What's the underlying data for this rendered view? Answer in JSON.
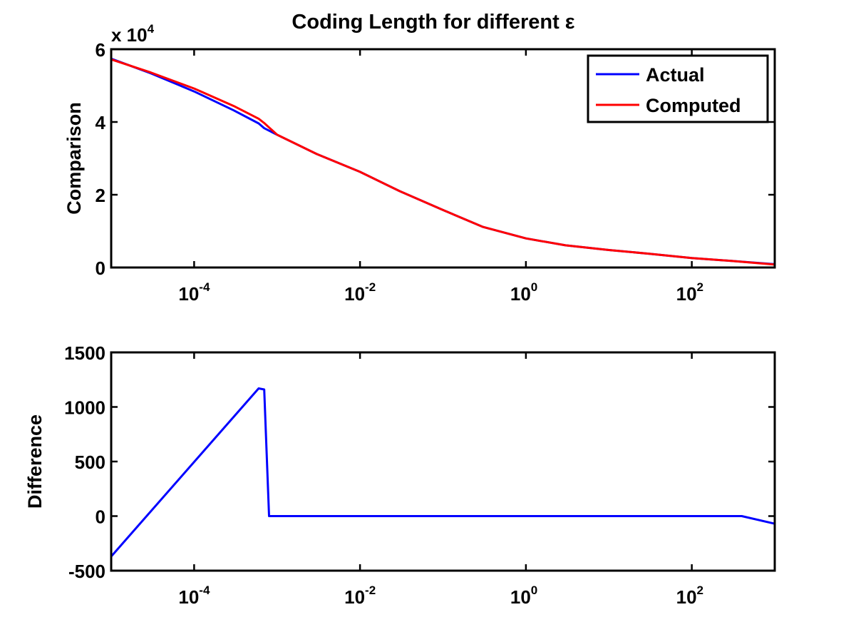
{
  "chart_data": [
    {
      "type": "line",
      "title": "Coding Length for different ε",
      "ylabel": "Comparison",
      "xlabel": "",
      "xscale": "log",
      "xlim": [
        1e-05,
        1000
      ],
      "ylim": [
        0,
        60000
      ],
      "y_multiplier_label": {
        "base": "x 10",
        "exponent": "4"
      },
      "xticks": [
        {
          "value": 0.0001,
          "base": "10",
          "exp": "-4"
        },
        {
          "value": 0.01,
          "base": "10",
          "exp": "-2"
        },
        {
          "value": 1,
          "base": "10",
          "exp": "0"
        },
        {
          "value": 100,
          "base": "10",
          "exp": "2"
        }
      ],
      "yticks": [
        {
          "value": 0,
          "label": "0"
        },
        {
          "value": 20000,
          "label": "2"
        },
        {
          "value": 40000,
          "label": "4"
        },
        {
          "value": 60000,
          "label": "6"
        }
      ],
      "legend": {
        "position": "top-right"
      },
      "series": [
        {
          "name": "Actual",
          "color": "#0000ff",
          "x": [
            1e-05,
            3e-05,
            0.0001,
            0.0003,
            0.0006,
            0.0007,
            0.001,
            0.003,
            0.01,
            0.03,
            0.1,
            0.3,
            1,
            3,
            10,
            30,
            100,
            300,
            1000
          ],
          "y": [
            57400,
            53400,
            48400,
            43200,
            39600,
            38300,
            36500,
            31200,
            26300,
            21000,
            15800,
            11200,
            8000,
            6100,
            4800,
            3800,
            2600,
            1800,
            900
          ]
        },
        {
          "name": "Computed",
          "color": "#ff0000",
          "x": [
            1e-05,
            3e-05,
            0.0001,
            0.0003,
            0.0006,
            0.0007,
            0.001,
            0.003,
            0.01,
            0.03,
            0.1,
            0.3,
            1,
            3,
            10,
            30,
            100,
            300,
            1000
          ],
          "y": [
            57200,
            53600,
            49200,
            44400,
            40900,
            39700,
            36500,
            31200,
            26300,
            21000,
            15800,
            11200,
            8000,
            6100,
            4800,
            3800,
            2600,
            1800,
            800
          ]
        }
      ]
    },
    {
      "type": "line",
      "title": "",
      "ylabel": "Difference",
      "xlabel": "",
      "xscale": "log",
      "xlim": [
        1e-05,
        1000
      ],
      "ylim": [
        -500,
        1500
      ],
      "xticks": [
        {
          "value": 0.0001,
          "base": "10",
          "exp": "-4"
        },
        {
          "value": 0.01,
          "base": "10",
          "exp": "-2"
        },
        {
          "value": 1,
          "base": "10",
          "exp": "0"
        },
        {
          "value": 100,
          "base": "10",
          "exp": "2"
        }
      ],
      "yticks": [
        {
          "value": -500,
          "label": "-500"
        },
        {
          "value": 0,
          "label": "0"
        },
        {
          "value": 500,
          "label": "500"
        },
        {
          "value": 1000,
          "label": "1000"
        },
        {
          "value": 1500,
          "label": "1500"
        }
      ],
      "series": [
        {
          "color": "#0000ff",
          "x": [
            1e-05,
            0.0006,
            0.0007,
            0.0008,
            400,
            1000
          ],
          "y": [
            -370,
            1170,
            1160,
            0,
            0,
            -70
          ]
        }
      ]
    }
  ]
}
